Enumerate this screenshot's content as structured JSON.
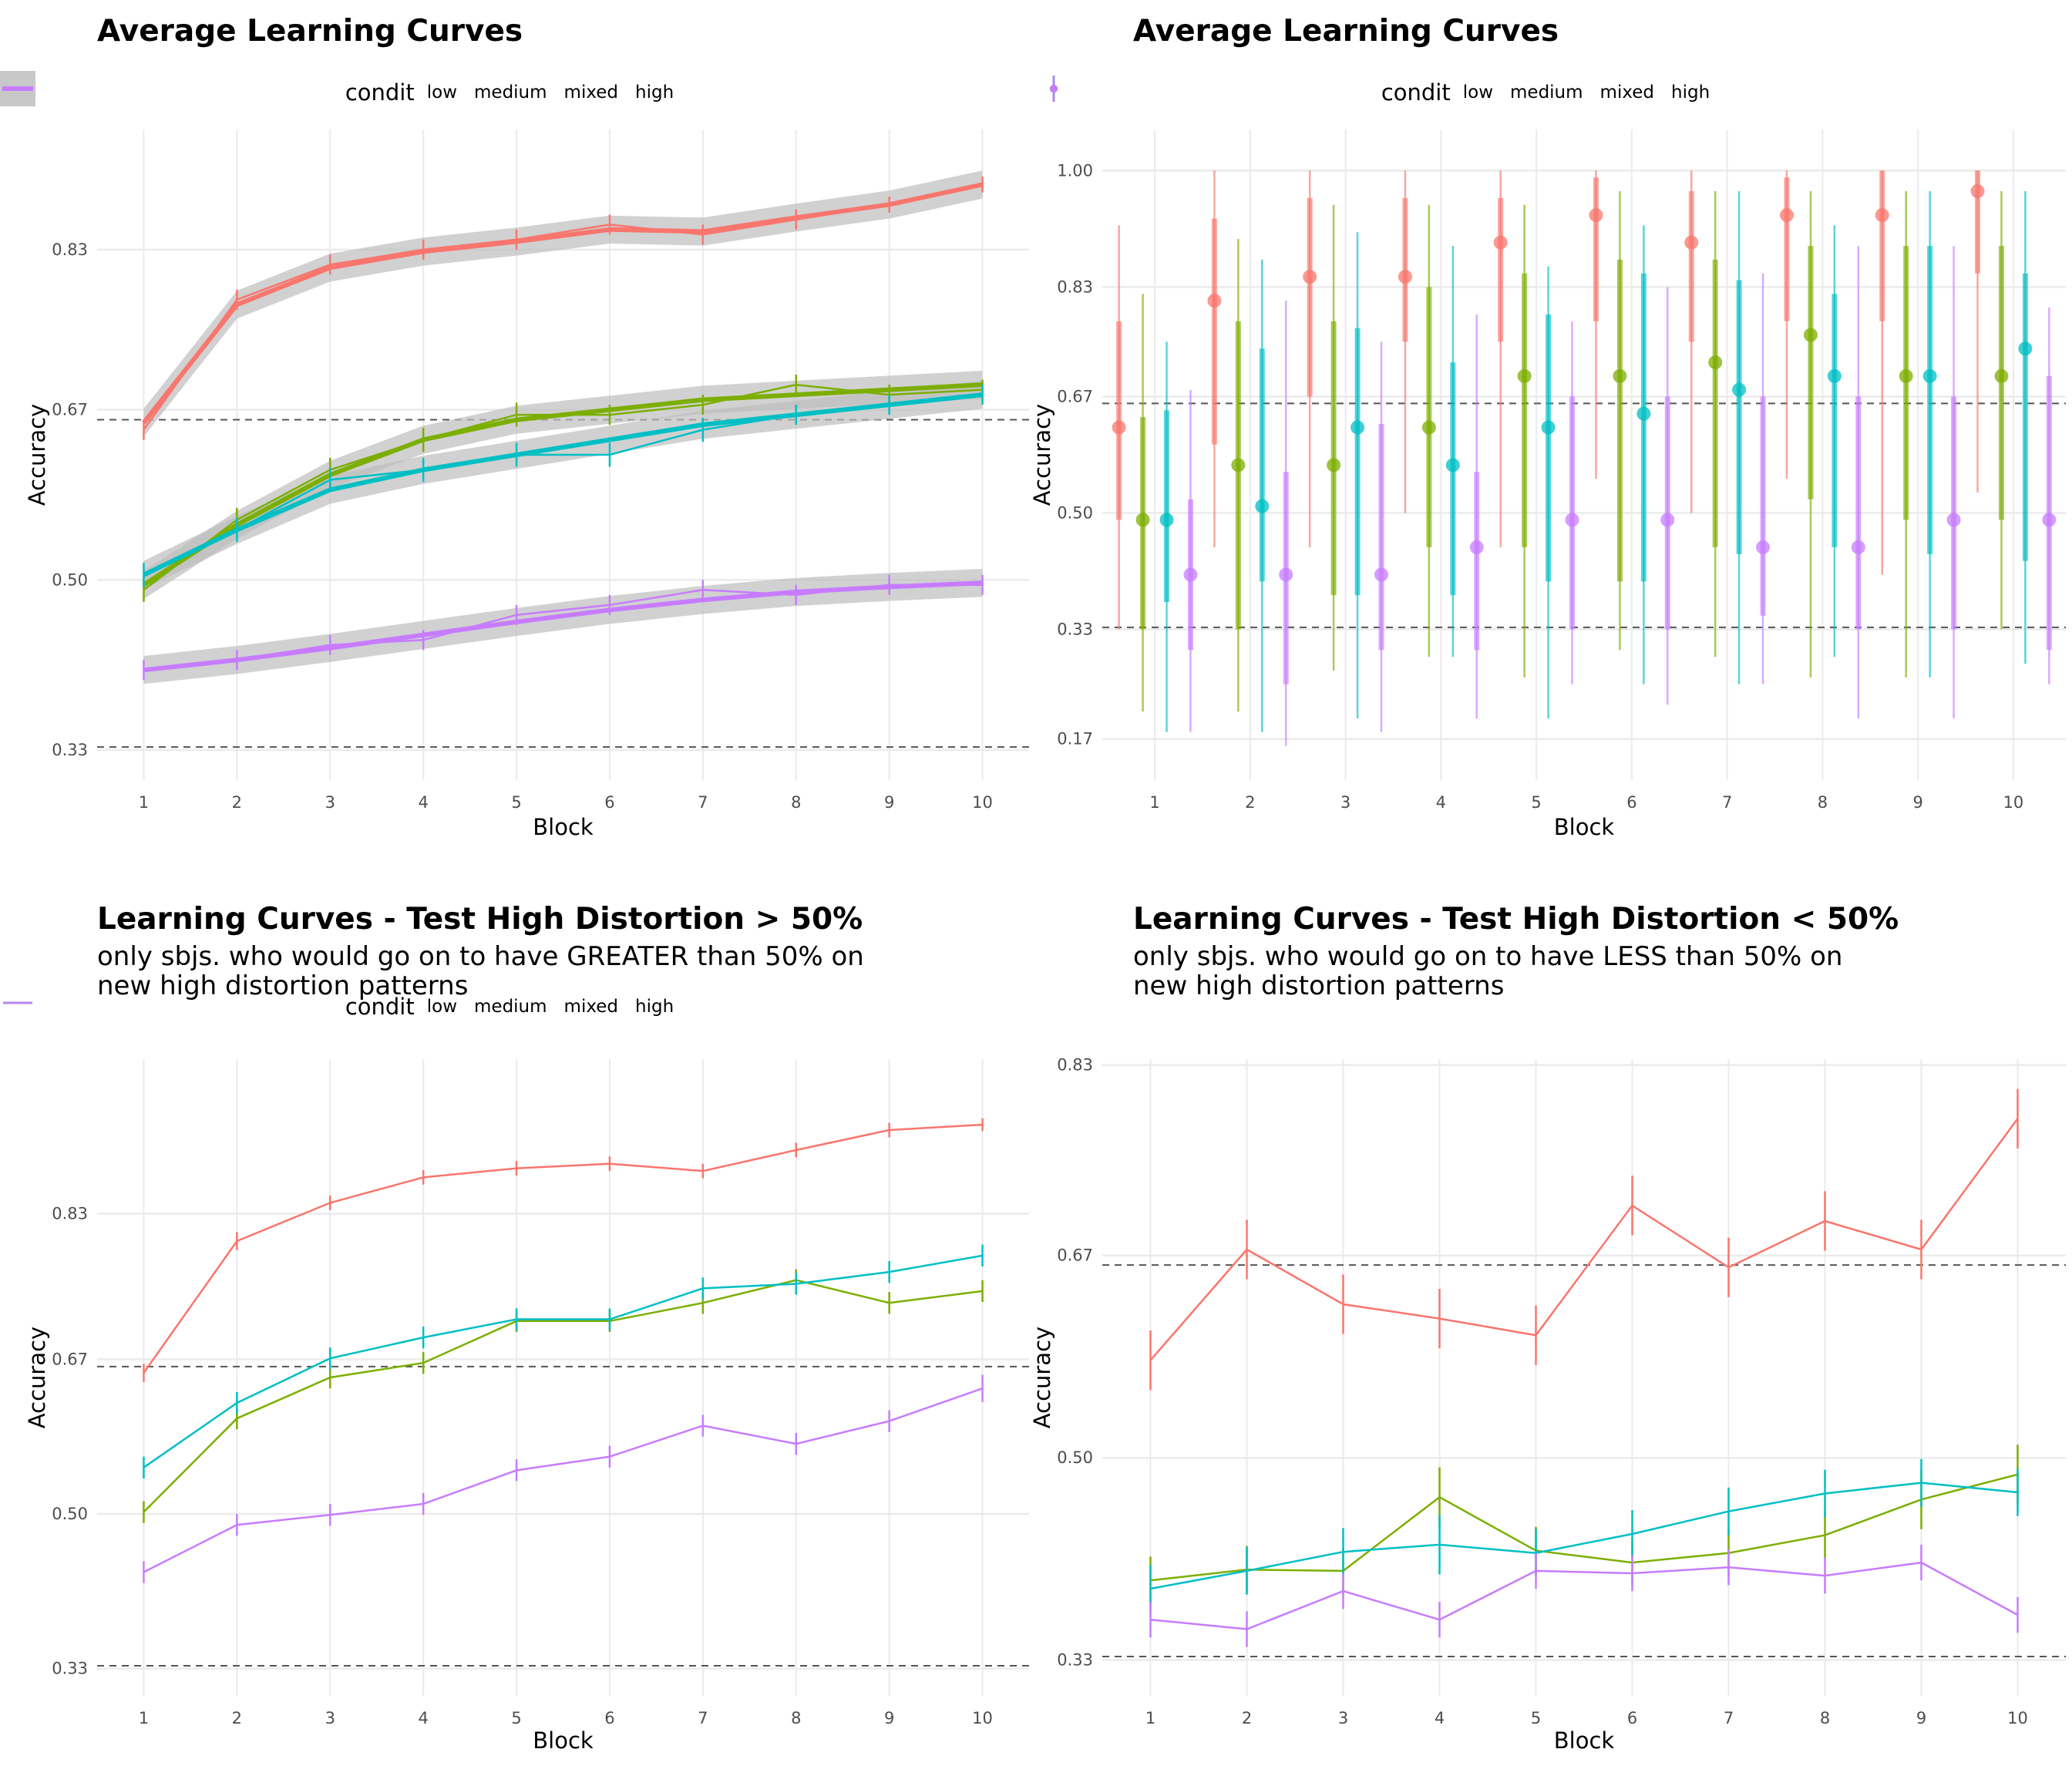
{
  "panels": [
    {
      "title": "Average Learning Curves",
      "subtitle": "",
      "legend_title": "condit",
      "legend_style": "smooth",
      "legend_top": 92,
      "plot": {
        "left": 126,
        "right": 1335,
        "top": 168,
        "bottom": 1012
      },
      "show_axis_ticks": true
    },
    {
      "title": "Average Learning Curves",
      "subtitle": "",
      "legend_title": "condit",
      "legend_style": "pointrange",
      "legend_top": 92,
      "plot": {
        "left": 1430,
        "right": 2680,
        "top": 168,
        "bottom": 1012
      },
      "show_axis_ticks": true
    },
    {
      "title": "Learning Curves - Test High Distortion > 50%",
      "subtitle": "only sbjs. who would go on to have GREATER than 50% on new high distortion patterns",
      "legend_title": "condit",
      "legend_style": "line",
      "legend_top": 1278,
      "plot": {
        "left": 126,
        "right": 1335,
        "top": 1374,
        "bottom": 2200
      },
      "show_axis_ticks": true
    },
    {
      "title": "Learning Curves - Test High Distortion < 50%",
      "subtitle": "only sbjs. who would go on to have LESS than 50% on new high distortion patterns",
      "legend_title": "",
      "legend_style": "none",
      "legend_top": 0,
      "plot": {
        "left": 1430,
        "right": 2680,
        "top": 1374,
        "bottom": 2200
      },
      "show_axis_ticks": true
    }
  ],
  "colors": {
    "low": "#F8766D",
    "medium": "#7CAE00",
    "mixed": "#00BFC4",
    "high": "#C77CFF"
  },
  "chart_data": [
    {
      "type": "line",
      "title": "Average Learning Curves",
      "xlabel": "Block",
      "ylabel": "Accuracy",
      "x": [
        1,
        2,
        3,
        4,
        5,
        6,
        7,
        8,
        9,
        10
      ],
      "xlim": [
        0.5,
        10.5
      ],
      "ylim": [
        0.3,
        0.95
      ],
      "yticks": [
        0.33,
        0.5,
        0.67,
        0.83
      ],
      "ytick_labels": [
        "0.33",
        "0.50",
        "0.67",
        "0.83"
      ],
      "hlines": [
        0.333,
        0.66
      ],
      "smooth_band": true,
      "series": [
        {
          "name": "low",
          "values": [
            0.65,
            0.78,
            0.815,
            0.83,
            0.84,
            0.855,
            0.845,
            0.86,
            0.875,
            0.895
          ],
          "err": [
            0.01,
            0.01,
            0.01,
            0.01,
            0.01,
            0.01,
            0.01,
            0.01,
            0.008,
            0.008
          ],
          "smooth": [
            0.657,
            0.775,
            0.812,
            0.828,
            0.838,
            0.85,
            0.848,
            0.862,
            0.875,
            0.895
          ]
        },
        {
          "name": "medium",
          "values": [
            0.49,
            0.56,
            0.61,
            0.64,
            0.665,
            0.665,
            0.675,
            0.695,
            0.685,
            0.69
          ],
          "err": [
            0.012,
            0.012,
            0.012,
            0.012,
            0.012,
            0.01,
            0.01,
            0.01,
            0.01,
            0.01
          ],
          "smooth": [
            0.495,
            0.555,
            0.605,
            0.64,
            0.66,
            0.67,
            0.68,
            0.685,
            0.69,
            0.695
          ]
        },
        {
          "name": "mixed",
          "values": [
            0.505,
            0.55,
            0.6,
            0.61,
            0.625,
            0.625,
            0.65,
            0.665,
            0.675,
            0.685
          ],
          "err": [
            0.012,
            0.012,
            0.012,
            0.012,
            0.012,
            0.012,
            0.012,
            0.01,
            0.01,
            0.01
          ],
          "smooth": [
            0.505,
            0.55,
            0.59,
            0.61,
            0.625,
            0.64,
            0.655,
            0.665,
            0.675,
            0.685
          ]
        },
        {
          "name": "high",
          "values": [
            0.41,
            0.42,
            0.435,
            0.44,
            0.465,
            0.475,
            0.49,
            0.485,
            0.495,
            0.495
          ],
          "err": [
            0.01,
            0.01,
            0.01,
            0.01,
            0.01,
            0.01,
            0.01,
            0.01,
            0.01,
            0.01
          ],
          "smooth": [
            0.41,
            0.42,
            0.432,
            0.445,
            0.458,
            0.47,
            0.48,
            0.488,
            0.493,
            0.497
          ]
        }
      ]
    },
    {
      "type": "pointrange",
      "title": "Average Learning Curves",
      "xlabel": "Block",
      "ylabel": "Accuracy",
      "x": [
        1,
        2,
        3,
        4,
        5,
        6,
        7,
        8,
        9,
        10
      ],
      "xlim": [
        0.45,
        10.55
      ],
      "ylim": [
        0.11,
        1.06
      ],
      "yticks": [
        0.17,
        0.33,
        0.5,
        0.67,
        0.83,
        1.0
      ],
      "ytick_labels": [
        "0.17",
        "0.33",
        "0.50",
        "0.67",
        "0.83",
        "1.00"
      ],
      "hlines": [
        0.333,
        0.66
      ],
      "dodge": 0.25,
      "series": [
        {
          "name": "low",
          "values": [
            0.625,
            0.81,
            0.845,
            0.845,
            0.895,
            0.935,
            0.895,
            0.935,
            0.935,
            0.97
          ],
          "inner": [
            [
              0.49,
              0.78
            ],
            [
              0.6,
              0.93
            ],
            [
              0.67,
              0.96
            ],
            [
              0.75,
              0.96
            ],
            [
              0.75,
              0.96
            ],
            [
              0.78,
              0.99
            ],
            [
              0.75,
              0.97
            ],
            [
              0.78,
              0.99
            ],
            [
              0.78,
              1.0
            ],
            [
              0.85,
              1.0
            ]
          ],
          "outer": [
            [
              0.33,
              0.92
            ],
            [
              0.45,
              1.0
            ],
            [
              0.45,
              1.0
            ],
            [
              0.5,
              1.0
            ],
            [
              0.45,
              1.0
            ],
            [
              0.55,
              1.0
            ],
            [
              0.5,
              1.0
            ],
            [
              0.55,
              1.0
            ],
            [
              0.41,
              1.0
            ],
            [
              0.53,
              1.0
            ]
          ]
        },
        {
          "name": "medium",
          "values": [
            0.49,
            0.57,
            0.57,
            0.625,
            0.7,
            0.7,
            0.72,
            0.76,
            0.7,
            0.7
          ],
          "inner": [
            [
              0.33,
              0.64
            ],
            [
              0.33,
              0.78
            ],
            [
              0.38,
              0.78
            ],
            [
              0.45,
              0.83
            ],
            [
              0.45,
              0.85
            ],
            [
              0.4,
              0.87
            ],
            [
              0.45,
              0.87
            ],
            [
              0.52,
              0.89
            ],
            [
              0.49,
              0.89
            ],
            [
              0.49,
              0.89
            ]
          ],
          "outer": [
            [
              0.21,
              0.82
            ],
            [
              0.21,
              0.9
            ],
            [
              0.27,
              0.95
            ],
            [
              0.29,
              0.95
            ],
            [
              0.26,
              0.95
            ],
            [
              0.3,
              0.97
            ],
            [
              0.29,
              0.97
            ],
            [
              0.26,
              0.97
            ],
            [
              0.26,
              0.97
            ],
            [
              0.33,
              0.97
            ]
          ]
        },
        {
          "name": "mixed",
          "values": [
            0.49,
            0.51,
            0.625,
            0.57,
            0.625,
            0.645,
            0.68,
            0.7,
            0.7,
            0.74
          ],
          "inner": [
            [
              0.37,
              0.65
            ],
            [
              0.4,
              0.74
            ],
            [
              0.38,
              0.77
            ],
            [
              0.38,
              0.72
            ],
            [
              0.4,
              0.79
            ],
            [
              0.4,
              0.85
            ],
            [
              0.44,
              0.84
            ],
            [
              0.45,
              0.82
            ],
            [
              0.44,
              0.89
            ],
            [
              0.43,
              0.85
            ]
          ],
          "outer": [
            [
              0.18,
              0.75
            ],
            [
              0.18,
              0.87
            ],
            [
              0.2,
              0.91
            ],
            [
              0.29,
              0.89
            ],
            [
              0.2,
              0.86
            ],
            [
              0.25,
              0.92
            ],
            [
              0.25,
              0.97
            ],
            [
              0.29,
              0.92
            ],
            [
              0.26,
              0.97
            ],
            [
              0.28,
              0.97
            ]
          ]
        },
        {
          "name": "high",
          "values": [
            0.41,
            0.41,
            0.41,
            0.45,
            0.49,
            0.49,
            0.45,
            0.45,
            0.49,
            0.49
          ],
          "inner": [
            [
              0.3,
              0.52
            ],
            [
              0.25,
              0.56
            ],
            [
              0.3,
              0.63
            ],
            [
              0.3,
              0.56
            ],
            [
              0.33,
              0.67
            ],
            [
              0.33,
              0.67
            ],
            [
              0.35,
              0.67
            ],
            [
              0.33,
              0.67
            ],
            [
              0.33,
              0.67
            ],
            [
              0.3,
              0.7
            ]
          ],
          "outer": [
            [
              0.18,
              0.68
            ],
            [
              0.16,
              0.81
            ],
            [
              0.18,
              0.75
            ],
            [
              0.2,
              0.79
            ],
            [
              0.25,
              0.78
            ],
            [
              0.22,
              0.83
            ],
            [
              0.25,
              0.85
            ],
            [
              0.2,
              0.89
            ],
            [
              0.2,
              0.89
            ],
            [
              0.25,
              0.8
            ]
          ]
        }
      ]
    },
    {
      "type": "line",
      "title": "Learning Curves - Test High Distortion > 50%",
      "subtitle": "only sbjs. who would go on to have GREATER than 50% on new high distortion patterns",
      "xlabel": "Block",
      "ylabel": "Accuracy",
      "x": [
        1,
        2,
        3,
        4,
        5,
        6,
        7,
        8,
        9,
        10
      ],
      "xlim": [
        0.5,
        10.5
      ],
      "ylim": [
        0.3,
        1.0
      ],
      "yticks": [
        0.33,
        0.5,
        0.67,
        0.83
      ],
      "ytick_labels": [
        "0.33",
        "0.50",
        "0.67",
        "0.83"
      ],
      "hlines": [
        0.333,
        0.662
      ],
      "series": [
        {
          "name": "low",
          "values": [
            0.655,
            0.8,
            0.842,
            0.87,
            0.88,
            0.885,
            0.877,
            0.9,
            0.922,
            0.928
          ],
          "err": [
            0.01,
            0.01,
            0.008,
            0.008,
            0.008,
            0.008,
            0.008,
            0.008,
            0.008,
            0.007
          ]
        },
        {
          "name": "medium",
          "values": [
            0.502,
            0.605,
            0.65,
            0.666,
            0.712,
            0.712,
            0.732,
            0.757,
            0.732,
            0.745
          ],
          "err": [
            0.012,
            0.012,
            0.012,
            0.012,
            0.012,
            0.012,
            0.012,
            0.012,
            0.012,
            0.012
          ]
        },
        {
          "name": "mixed",
          "values": [
            0.551,
            0.622,
            0.671,
            0.694,
            0.714,
            0.714,
            0.748,
            0.753,
            0.766,
            0.784
          ],
          "err": [
            0.012,
            0.012,
            0.012,
            0.012,
            0.012,
            0.012,
            0.012,
            0.012,
            0.012,
            0.012
          ]
        },
        {
          "name": "high",
          "values": [
            0.436,
            0.488,
            0.499,
            0.511,
            0.548,
            0.563,
            0.597,
            0.577,
            0.602,
            0.638
          ],
          "err": [
            0.012,
            0.012,
            0.012,
            0.012,
            0.012,
            0.012,
            0.012,
            0.012,
            0.012,
            0.015
          ]
        }
      ]
    },
    {
      "type": "line",
      "title": "Learning Curves - Test High Distortion < 50%",
      "subtitle": "only sbjs. who would go on to have LESS than 50% on new high distortion patterns",
      "xlabel": "Block",
      "ylabel": "Accuracy",
      "x": [
        1,
        2,
        3,
        4,
        5,
        6,
        7,
        8,
        9,
        10
      ],
      "xlim": [
        0.5,
        10.5
      ],
      "ylim": [
        0.3,
        0.835
      ],
      "yticks": [
        0.33,
        0.5,
        0.67,
        0.83
      ],
      "ytick_labels": [
        "0.33",
        "0.50",
        "0.67",
        "0.83"
      ],
      "hlines": [
        0.333,
        0.662
      ],
      "series": [
        {
          "name": "low",
          "values": [
            0.582,
            0.675,
            0.629,
            0.617,
            0.603,
            0.712,
            0.66,
            0.699,
            0.675,
            0.785
          ],
          "err": [
            0.025,
            0.025,
            0.025,
            0.025,
            0.025,
            0.025,
            0.025,
            0.025,
            0.025,
            0.025
          ]
        },
        {
          "name": "medium",
          "values": [
            0.397,
            0.406,
            0.405,
            0.467,
            0.422,
            0.412,
            0.42,
            0.435,
            0.465,
            0.486
          ],
          "err": [
            0.02,
            0.02,
            0.02,
            0.025,
            0.02,
            0.02,
            0.02,
            0.02,
            0.025,
            0.025
          ]
        },
        {
          "name": "mixed",
          "values": [
            0.39,
            0.405,
            0.421,
            0.427,
            0.42,
            0.436,
            0.455,
            0.47,
            0.479,
            0.471
          ],
          "err": [
            0.02,
            0.02,
            0.02,
            0.025,
            0.02,
            0.02,
            0.02,
            0.02,
            0.02,
            0.02
          ]
        },
        {
          "name": "high",
          "values": [
            0.364,
            0.356,
            0.388,
            0.364,
            0.405,
            0.403,
            0.408,
            0.401,
            0.412,
            0.368
          ],
          "err": [
            0.015,
            0.015,
            0.015,
            0.015,
            0.015,
            0.015,
            0.015,
            0.015,
            0.015,
            0.015
          ]
        }
      ]
    }
  ]
}
